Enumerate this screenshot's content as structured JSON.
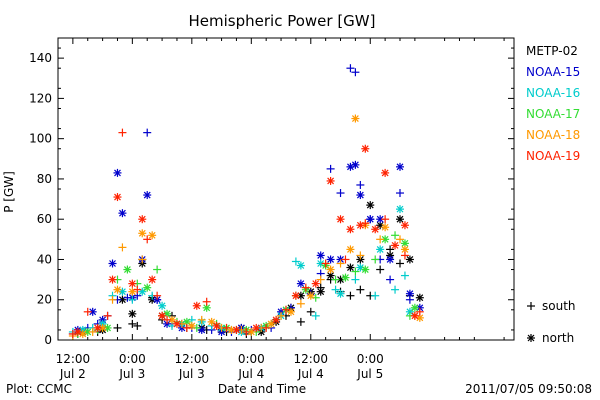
{
  "chart_data": {
    "type": "scatter",
    "title": "Hemispheric Power [GW]",
    "ylabel": "P [GW]",
    "xlabel": "Date and Time",
    "ylim": [
      0,
      150
    ],
    "yticks": [
      0,
      20,
      40,
      60,
      80,
      100,
      120,
      140
    ],
    "xlim_hours": [
      -3,
      89
    ],
    "xticks": [
      {
        "hour": 0,
        "time": "12:00",
        "date": "Jul 2"
      },
      {
        "hour": 12,
        "time": "0:00",
        "date": "Jul 3"
      },
      {
        "hour": 24,
        "time": "12:00",
        "date": "Jul 3"
      },
      {
        "hour": 36,
        "time": "0:00",
        "date": "Jul 4"
      },
      {
        "hour": 48,
        "time": "12:00",
        "date": "Jul 4"
      },
      {
        "hour": 60,
        "time": "0:00",
        "date": "Jul 5"
      }
    ],
    "marker_legend": [
      {
        "marker": "+",
        "label": "south"
      },
      {
        "marker": "*",
        "label": "north"
      }
    ],
    "series": [
      {
        "name": "METP-02",
        "color": "#000000",
        "points": {
          "south": [
            [
              1,
              3
            ],
            [
              5,
              4
            ],
            [
              9,
              6
            ],
            [
              12,
              8
            ],
            [
              13,
              7
            ],
            [
              16,
              21
            ],
            [
              18,
              10
            ],
            [
              20,
              12
            ],
            [
              23,
              6
            ],
            [
              27,
              5
            ],
            [
              31,
              4
            ],
            [
              35,
              3
            ],
            [
              38,
              5
            ],
            [
              40,
              8
            ],
            [
              43,
              12
            ],
            [
              46,
              9
            ],
            [
              48,
              14
            ],
            [
              50,
              26
            ],
            [
              52,
              30
            ],
            [
              54,
              24
            ],
            [
              56,
              22
            ],
            [
              58,
              25
            ],
            [
              60,
              22
            ],
            [
              62,
              35
            ],
            [
              64,
              45
            ],
            [
              66,
              38
            ],
            [
              68,
              22
            ]
          ],
          "north": [
            [
              2,
              4
            ],
            [
              6,
              5
            ],
            [
              10,
              20
            ],
            [
              12,
              13
            ],
            [
              14,
              38
            ],
            [
              16,
              20
            ],
            [
              18,
              12
            ],
            [
              22,
              8
            ],
            [
              26,
              6
            ],
            [
              30,
              5
            ],
            [
              34,
              6
            ],
            [
              38,
              4
            ],
            [
              41,
              9
            ],
            [
              44,
              16
            ],
            [
              46,
              22
            ],
            [
              48,
              24
            ],
            [
              50,
              24
            ],
            [
              52,
              32
            ],
            [
              54,
              30
            ],
            [
              56,
              36
            ],
            [
              58,
              40
            ],
            [
              60,
              67
            ],
            [
              62,
              57
            ],
            [
              64,
              42
            ],
            [
              66,
              60
            ],
            [
              68,
              40
            ],
            [
              70,
              21
            ]
          ]
        }
      },
      {
        "name": "NOAA-15",
        "color": "#0000cc",
        "points": {
          "south": [
            [
              0,
              3
            ],
            [
              3,
              6
            ],
            [
              5,
              8
            ],
            [
              7,
              12
            ],
            [
              9,
              20
            ],
            [
              11,
              21
            ],
            [
              13,
              22
            ],
            [
              15,
              103
            ],
            [
              17,
              20
            ],
            [
              20,
              8
            ],
            [
              24,
              6
            ],
            [
              28,
              5
            ],
            [
              32,
              4
            ],
            [
              36,
              5
            ],
            [
              40,
              6
            ],
            [
              44,
              16
            ],
            [
              48,
              23
            ],
            [
              50,
              33
            ],
            [
              52,
              85
            ],
            [
              54,
              73
            ],
            [
              56,
              135
            ],
            [
              57,
              133
            ],
            [
              58,
              77
            ],
            [
              60,
              60
            ],
            [
              62,
              40
            ],
            [
              64,
              30
            ],
            [
              66,
              73
            ],
            [
              68,
              20
            ]
          ],
          "north": [
            [
              1,
              5
            ],
            [
              4,
              14
            ],
            [
              6,
              10
            ],
            [
              8,
              38
            ],
            [
              9,
              83
            ],
            [
              10,
              63
            ],
            [
              12,
              21
            ],
            [
              14,
              40
            ],
            [
              15,
              72
            ],
            [
              17,
              20
            ],
            [
              19,
              8
            ],
            [
              22,
              6
            ],
            [
              26,
              5
            ],
            [
              30,
              4
            ],
            [
              34,
              6
            ],
            [
              38,
              6
            ],
            [
              42,
              14
            ],
            [
              46,
              28
            ],
            [
              50,
              42
            ],
            [
              52,
              40
            ],
            [
              54,
              40
            ],
            [
              56,
              86
            ],
            [
              57,
              87
            ],
            [
              58,
              72
            ],
            [
              60,
              60
            ],
            [
              62,
              60
            ],
            [
              64,
              40
            ],
            [
              66,
              86
            ],
            [
              68,
              23
            ],
            [
              70,
              16
            ]
          ]
        }
      },
      {
        "name": "NOAA-16",
        "color": "#00cccc",
        "points": {
          "south": [
            [
              0,
              4
            ],
            [
              4,
              6
            ],
            [
              8,
              22
            ],
            [
              12,
              20
            ],
            [
              16,
              22
            ],
            [
              20,
              7
            ],
            [
              24,
              10
            ],
            [
              28,
              7
            ],
            [
              32,
              5
            ],
            [
              36,
              4
            ],
            [
              40,
              8
            ],
            [
              45,
              39
            ],
            [
              49,
              12
            ],
            [
              53,
              25
            ],
            [
              57,
              30
            ],
            [
              61,
              22
            ],
            [
              65,
              25
            ],
            [
              67,
              32
            ]
          ],
          "north": [
            [
              2,
              5
            ],
            [
              6,
              8
            ],
            [
              10,
              24
            ],
            [
              14,
              24
            ],
            [
              18,
              17
            ],
            [
              22,
              8
            ],
            [
              26,
              9
            ],
            [
              30,
              6
            ],
            [
              34,
              4
            ],
            [
              38,
              6
            ],
            [
              42,
              12
            ],
            [
              46,
              37
            ],
            [
              50,
              38
            ],
            [
              54,
              23
            ],
            [
              58,
              36
            ],
            [
              62,
              45
            ],
            [
              66,
              65
            ],
            [
              68,
              14
            ]
          ]
        }
      },
      {
        "name": "NOAA-17",
        "color": "#33dd33",
        "points": {
          "south": [
            [
              1,
              3
            ],
            [
              5,
              5
            ],
            [
              9,
              30
            ],
            [
              13,
              28
            ],
            [
              17,
              35
            ],
            [
              21,
              9
            ],
            [
              25,
              6
            ],
            [
              29,
              8
            ],
            [
              33,
              5
            ],
            [
              37,
              4
            ],
            [
              41,
              10
            ],
            [
              45,
              22
            ],
            [
              49,
              21
            ],
            [
              53,
              30
            ],
            [
              57,
              34
            ],
            [
              61,
              40
            ],
            [
              65,
              52
            ],
            [
              68,
              12
            ]
          ],
          "north": [
            [
              3,
              4
            ],
            [
              7,
              6
            ],
            [
              11,
              35
            ],
            [
              15,
              26
            ],
            [
              19,
              13
            ],
            [
              23,
              9
            ],
            [
              27,
              16
            ],
            [
              31,
              6
            ],
            [
              35,
              5
            ],
            [
              39,
              7
            ],
            [
              43,
              15
            ],
            [
              47,
              25
            ],
            [
              51,
              37
            ],
            [
              55,
              31
            ],
            [
              59,
              35
            ],
            [
              63,
              50
            ],
            [
              67,
              48
            ],
            [
              69,
              16
            ]
          ]
        }
      },
      {
        "name": "NOAA-18",
        "color": "#ff9900",
        "points": {
          "south": [
            [
              0,
              2
            ],
            [
              4,
              4
            ],
            [
              8,
              20
            ],
            [
              10,
              46
            ],
            [
              14,
              40
            ],
            [
              18,
              12
            ],
            [
              22,
              8
            ],
            [
              26,
              10
            ],
            [
              30,
              6
            ],
            [
              34,
              5
            ],
            [
              38,
              6
            ],
            [
              42,
              12
            ],
            [
              46,
              18
            ],
            [
              50,
              30
            ],
            [
              54,
              38
            ],
            [
              58,
              42
            ],
            [
              62,
              50
            ],
            [
              66,
              50
            ],
            [
              69,
              12
            ]
          ],
          "north": [
            [
              2,
              3
            ],
            [
              6,
              6
            ],
            [
              9,
              25
            ],
            [
              12,
              24
            ],
            [
              14,
              53
            ],
            [
              16,
              52
            ],
            [
              20,
              10
            ],
            [
              24,
              7
            ],
            [
              28,
              9
            ],
            [
              32,
              5
            ],
            [
              36,
              4
            ],
            [
              40,
              8
            ],
            [
              44,
              14
            ],
            [
              48,
              22
            ],
            [
              52,
              35
            ],
            [
              56,
              45
            ],
            [
              57,
              110
            ],
            [
              59,
              57
            ],
            [
              63,
              56
            ],
            [
              67,
              45
            ],
            [
              70,
              11
            ]
          ]
        }
      },
      {
        "name": "NOAA-19",
        "color": "#ff2200",
        "points": {
          "south": [
            [
              0,
              3
            ],
            [
              3,
              14
            ],
            [
              7,
              12
            ],
            [
              10,
              103
            ],
            [
              13,
              25
            ],
            [
              15,
              50
            ],
            [
              17,
              22
            ],
            [
              19,
              10
            ],
            [
              23,
              6
            ],
            [
              27,
              19
            ],
            [
              31,
              6
            ],
            [
              35,
              4
            ],
            [
              39,
              6
            ],
            [
              43,
              15
            ],
            [
              47,
              26
            ],
            [
              51,
              38
            ],
            [
              55,
              40
            ],
            [
              59,
              58
            ],
            [
              63,
              60
            ],
            [
              67,
              42
            ],
            [
              70,
              14
            ]
          ],
          "north": [
            [
              1,
              4
            ],
            [
              5,
              6
            ],
            [
              8,
              30
            ],
            [
              9,
              71
            ],
            [
              12,
              28
            ],
            [
              14,
              60
            ],
            [
              16,
              30
            ],
            [
              18,
              12
            ],
            [
              21,
              8
            ],
            [
              25,
              17
            ],
            [
              29,
              7
            ],
            [
              33,
              5
            ],
            [
              37,
              6
            ],
            [
              41,
              10
            ],
            [
              45,
              22
            ],
            [
              49,
              28
            ],
            [
              52,
              79
            ],
            [
              54,
              60
            ],
            [
              56,
              55
            ],
            [
              58,
              57
            ],
            [
              59,
              95
            ],
            [
              61,
              55
            ],
            [
              63,
              83
            ],
            [
              65,
              47
            ],
            [
              67,
              57
            ],
            [
              69,
              12
            ]
          ]
        }
      }
    ]
  },
  "footer": {
    "plot_label": "Plot: CCMC",
    "timestamp": "2011/07/05 09:50:08"
  }
}
